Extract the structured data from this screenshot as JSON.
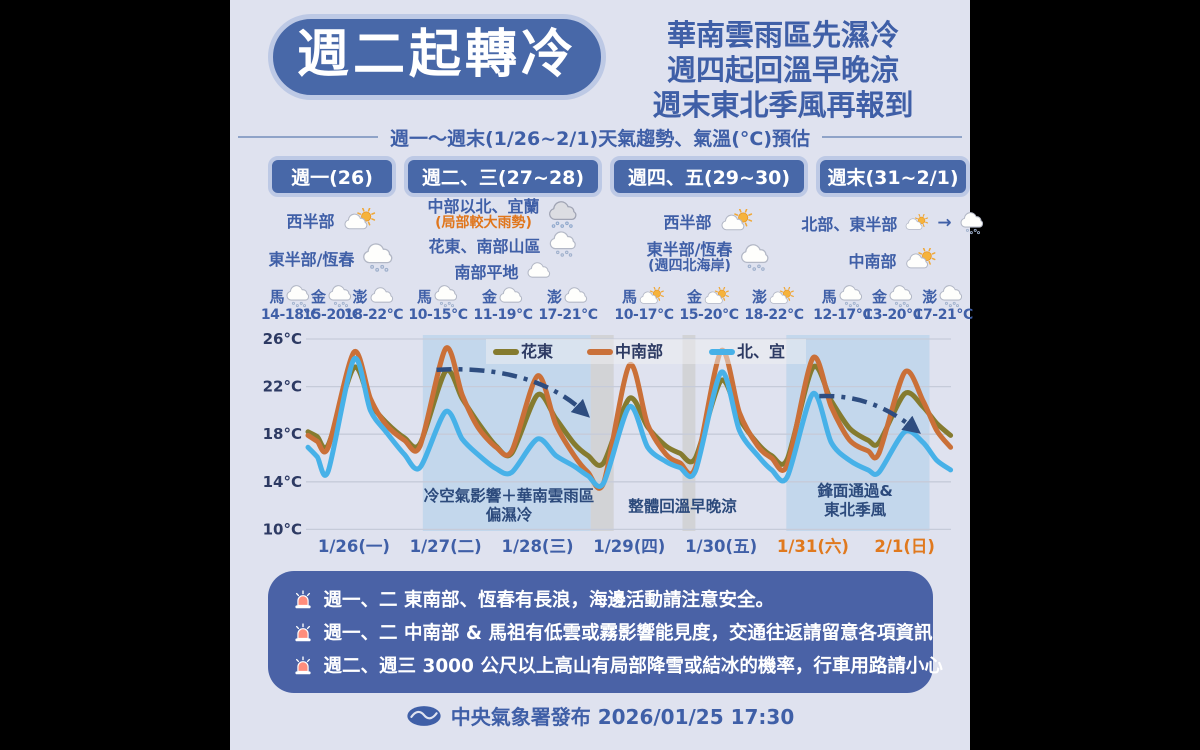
{
  "header": {
    "title": "週二起轉冷",
    "headline_lines": [
      "華南雲雨區先濕冷",
      "週四起回溫早晚涼",
      "週末東北季風再報到"
    ]
  },
  "subtitle": "週一～週末(1/26~2/1)天氣趨勢、氣溫(°C)預估",
  "columns": [
    {
      "header": "週一(26)",
      "regions": [
        {
          "label": "西半部",
          "icon": "psun"
        },
        {
          "label": "東半部/恆春",
          "icon": "rain"
        }
      ],
      "islands": [
        {
          "name": "馬",
          "icon": "rain",
          "temp": "14-18°C"
        },
        {
          "name": "金",
          "icon": "rain",
          "temp": "15-20°C"
        },
        {
          "name": "澎",
          "icon": "cloud",
          "temp": "18-22°C"
        }
      ]
    },
    {
      "header": "週二、三(27~28)",
      "regions": [
        {
          "label": "中部以北、宜蘭",
          "note": "(局部較大雨勢)",
          "icon": "heavyrain"
        },
        {
          "label": "花東、南部山區",
          "icon": "rain"
        },
        {
          "label": "南部平地",
          "icon": "cloud"
        }
      ],
      "islands": [
        {
          "name": "馬",
          "icon": "rain",
          "temp": "10-15°C"
        },
        {
          "name": "金",
          "icon": "cloud",
          "temp": "11-19°C"
        },
        {
          "name": "澎",
          "icon": "cloud",
          "temp": "17-21°C"
        }
      ]
    },
    {
      "header": "週四、五(29~30)",
      "regions": [
        {
          "label": "西半部",
          "icon": "psun"
        },
        {
          "label": "東半部/恆春",
          "note": "(週四北海岸)",
          "icon": "rain"
        }
      ],
      "islands": [
        {
          "name": "馬",
          "icon": "psun",
          "temp": "10-17°C"
        },
        {
          "name": "金",
          "icon": "psun",
          "temp": "15-20°C"
        },
        {
          "name": "澎",
          "icon": "psun",
          "temp": "18-22°C"
        }
      ]
    },
    {
      "header": "週末(31~2/1)",
      "regions": [
        {
          "label": "北部、東半部",
          "icon": "psun",
          "arrow": "→",
          "icon2": "rain"
        },
        {
          "label": "中南部",
          "icon": "psun"
        }
      ],
      "islands": [
        {
          "name": "馬",
          "icon": "rain",
          "temp": "12-17°C"
        },
        {
          "name": "金",
          "icon": "rain",
          "temp": "13-20°C"
        },
        {
          "name": "澎",
          "icon": "rain",
          "temp": "17-21°C"
        }
      ]
    }
  ],
  "chart_data": {
    "type": "line",
    "title": "週一～週末(1/26~2/1)氣溫預估",
    "xlabel": "",
    "ylabel": "°C",
    "ylim": [
      10,
      26.5
    ],
    "y_ticks": [
      26,
      22,
      18,
      14,
      10
    ],
    "y_tick_labels": [
      "26°C",
      "22°C",
      "18°C",
      "14°C",
      "10°C"
    ],
    "x_tick_labels": [
      {
        "label": "1/26(一)",
        "color": "#3f5fa7"
      },
      {
        "label": "1/27(二)",
        "color": "#3f5fa7"
      },
      {
        "label": "1/28(三)",
        "color": "#3f5fa7"
      },
      {
        "label": "1/29(四)",
        "color": "#3f5fa7"
      },
      {
        "label": "1/30(五)",
        "color": "#3f5fa7"
      },
      {
        "label": "1/31(六)",
        "color": "#e0791e"
      },
      {
        "label": "2/1(日)",
        "color": "#e0791e"
      }
    ],
    "legend_position": "top",
    "grid": true,
    "series": [
      {
        "name": "花東",
        "color": "#857b2f",
        "points": [
          [
            0,
            18.2
          ],
          [
            0.1,
            17.8
          ],
          [
            0.22,
            17.1
          ],
          [
            0.5,
            23.6
          ],
          [
            0.68,
            20.6
          ],
          [
            0.85,
            19.0
          ],
          [
            1.05,
            17.7
          ],
          [
            1.22,
            17.2
          ],
          [
            1.5,
            23.3
          ],
          [
            1.68,
            21.0
          ],
          [
            1.85,
            19.0
          ],
          [
            2.05,
            17.0
          ],
          [
            2.22,
            16.4
          ],
          [
            2.5,
            21.3
          ],
          [
            2.7,
            19.3
          ],
          [
            2.9,
            17.2
          ],
          [
            3.05,
            16.2
          ],
          [
            3.22,
            15.6
          ],
          [
            3.5,
            21.0
          ],
          [
            3.7,
            18.6
          ],
          [
            3.9,
            17.0
          ],
          [
            4.05,
            16.4
          ],
          [
            4.22,
            16.0
          ],
          [
            4.5,
            22.5
          ],
          [
            4.7,
            19.3
          ],
          [
            4.9,
            17.2
          ],
          [
            5.05,
            16.2
          ],
          [
            5.22,
            15.9
          ],
          [
            5.5,
            23.6
          ],
          [
            5.7,
            20.8
          ],
          [
            5.9,
            18.5
          ],
          [
            6.1,
            17.5
          ],
          [
            6.22,
            17.3
          ],
          [
            6.5,
            21.4
          ],
          [
            6.7,
            20.3
          ],
          [
            6.85,
            18.9
          ],
          [
            7,
            17.9
          ]
        ]
      },
      {
        "name": "中南部",
        "color": "#ca7038",
        "points": [
          [
            0,
            17.9
          ],
          [
            0.1,
            17.4
          ],
          [
            0.22,
            16.9
          ],
          [
            0.5,
            24.9
          ],
          [
            0.68,
            21.0
          ],
          [
            0.85,
            18.8
          ],
          [
            1.05,
            17.5
          ],
          [
            1.22,
            17.0
          ],
          [
            1.5,
            25.2
          ],
          [
            1.68,
            21.3
          ],
          [
            1.85,
            18.6
          ],
          [
            2.05,
            16.9
          ],
          [
            2.22,
            16.6
          ],
          [
            2.5,
            22.9
          ],
          [
            2.7,
            18.8
          ],
          [
            2.9,
            16.2
          ],
          [
            3.05,
            14.8
          ],
          [
            3.22,
            13.9
          ],
          [
            3.5,
            23.8
          ],
          [
            3.7,
            18.8
          ],
          [
            3.9,
            16.3
          ],
          [
            4.05,
            15.6
          ],
          [
            4.22,
            15.2
          ],
          [
            4.5,
            25.0
          ],
          [
            4.7,
            19.8
          ],
          [
            4.9,
            17.0
          ],
          [
            5.05,
            16.0
          ],
          [
            5.22,
            15.4
          ],
          [
            5.5,
            24.4
          ],
          [
            5.7,
            20.3
          ],
          [
            5.9,
            17.5
          ],
          [
            6.1,
            16.6
          ],
          [
            6.22,
            16.4
          ],
          [
            6.5,
            23.2
          ],
          [
            6.7,
            20.8
          ],
          [
            6.85,
            18.3
          ],
          [
            7,
            16.9
          ]
        ]
      },
      {
        "name": "北、宜",
        "color": "#47b1e8",
        "points": [
          [
            0,
            16.9
          ],
          [
            0.1,
            16.1
          ],
          [
            0.22,
            14.9
          ],
          [
            0.5,
            24.3
          ],
          [
            0.68,
            20.0
          ],
          [
            0.85,
            18.2
          ],
          [
            1.05,
            16.3
          ],
          [
            1.22,
            15.2
          ],
          [
            1.5,
            19.9
          ],
          [
            1.68,
            17.6
          ],
          [
            1.85,
            16.3
          ],
          [
            2.05,
            15.1
          ],
          [
            2.22,
            14.8
          ],
          [
            2.5,
            17.6
          ],
          [
            2.7,
            16.2
          ],
          [
            2.9,
            15.3
          ],
          [
            3.05,
            14.5
          ],
          [
            3.22,
            13.9
          ],
          [
            3.5,
            20.3
          ],
          [
            3.7,
            16.9
          ],
          [
            3.9,
            15.7
          ],
          [
            4.05,
            15.2
          ],
          [
            4.22,
            14.9
          ],
          [
            4.5,
            23.2
          ],
          [
            4.7,
            18.3
          ],
          [
            4.9,
            16.2
          ],
          [
            5.05,
            15.0
          ],
          [
            5.22,
            14.4
          ],
          [
            5.5,
            21.4
          ],
          [
            5.7,
            17.3
          ],
          [
            5.9,
            15.8
          ],
          [
            6.1,
            15.0
          ],
          [
            6.22,
            14.8
          ],
          [
            6.5,
            18.2
          ],
          [
            6.7,
            17.3
          ],
          [
            6.85,
            15.8
          ],
          [
            7,
            15.0
          ]
        ]
      }
    ],
    "bands": [
      {
        "t0": 1.25,
        "t1": 3.08,
        "color": "#c3d7ec"
      },
      {
        "t0": 3.08,
        "t1": 3.33,
        "color": "#d2d3d6"
      },
      {
        "t0": 4.08,
        "t1": 4.22,
        "color": "#d2d3d6"
      },
      {
        "t0": 5.21,
        "t1": 6.77,
        "color": "#c3d7ec"
      }
    ],
    "annotations": [
      {
        "t": 2.19,
        "y": 12.4,
        "lines": [
          "冷空氣影響＋華南雲雨區",
          "偏濕冷"
        ]
      },
      {
        "t": 4.08,
        "y": 11.5,
        "lines": [
          "整體回溫早晚涼"
        ]
      },
      {
        "t": 5.96,
        "y": 12.8,
        "lines": [
          "鋒面通過&",
          "東北季風"
        ]
      }
    ],
    "arrows": [
      {
        "from": [
          1.4,
          23.4
        ],
        "c1": [
          2.0,
          23.7
        ],
        "c2": [
          2.6,
          22.8
        ],
        "to": [
          3.0,
          19.9
        ]
      },
      {
        "from": [
          5.57,
          21.2
        ],
        "c1": [
          6.0,
          21.3
        ],
        "c2": [
          6.3,
          20.3
        ],
        "to": [
          6.6,
          18.5
        ]
      }
    ],
    "arrow_color": "#2e4d80"
  },
  "notes": {
    "items": [
      "週一、二 東南部、恆春有長浪，海邊活動請注意安全。",
      "週一、二 中南部 & 馬祖有低雲或霧影響能見度，交通往返請留意各項資訊",
      "週二、週三 3000 公尺以上高山有局部降雪或結冰的機率，行車用路請小心"
    ]
  },
  "footer": {
    "publisher": "中央氣象署發布 2026/01/25 17:30"
  }
}
